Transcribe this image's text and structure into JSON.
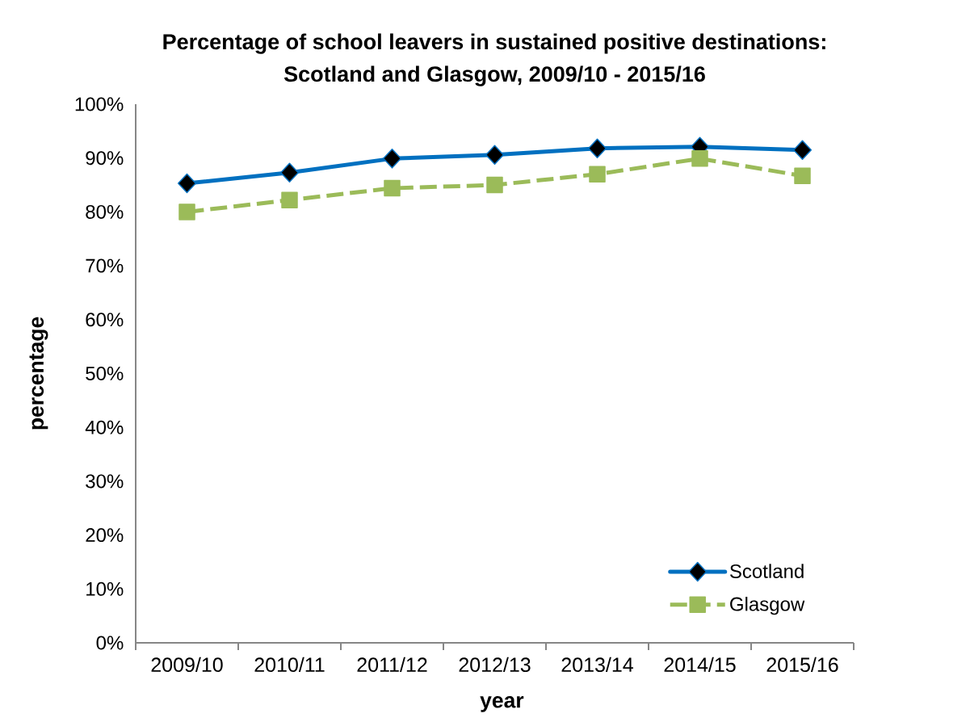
{
  "chart_data": {
    "type": "line",
    "title": "Percentage of school leavers in sustained positive destinations: Scotland and Glasgow, 2009/10 - 2015/16",
    "xlabel": "year",
    "ylabel": "percentage",
    "categories": [
      "2009/10",
      "2010/11",
      "2011/12",
      "2012/13",
      "2013/14",
      "2014/15",
      "2015/16"
    ],
    "series": [
      {
        "name": "Scotland",
        "color": "#0070c0",
        "marker": "diamond",
        "line_style": "solid",
        "values": [
          85.3,
          87.3,
          89.9,
          90.6,
          91.8,
          92.1,
          91.5
        ]
      },
      {
        "name": "Glasgow",
        "color": "#9bbb59",
        "marker": "square",
        "line_style": "dashed",
        "values": [
          80.0,
          82.2,
          84.4,
          85.0,
          87.0,
          89.9,
          86.7
        ]
      }
    ],
    "ylim": [
      0,
      100
    ],
    "yticks": [
      {
        "value": 0,
        "label": "0%"
      },
      {
        "value": 10,
        "label": "10%"
      },
      {
        "value": 20,
        "label": "20%"
      },
      {
        "value": 30,
        "label": "30%"
      },
      {
        "value": 40,
        "label": "40%"
      },
      {
        "value": 50,
        "label": "50%"
      },
      {
        "value": 60,
        "label": "60%"
      },
      {
        "value": 70,
        "label": "70%"
      },
      {
        "value": 80,
        "label": "80%"
      },
      {
        "value": 90,
        "label": "90%"
      },
      {
        "value": 100,
        "label": "100%"
      }
    ],
    "legend": "bottom right"
  }
}
